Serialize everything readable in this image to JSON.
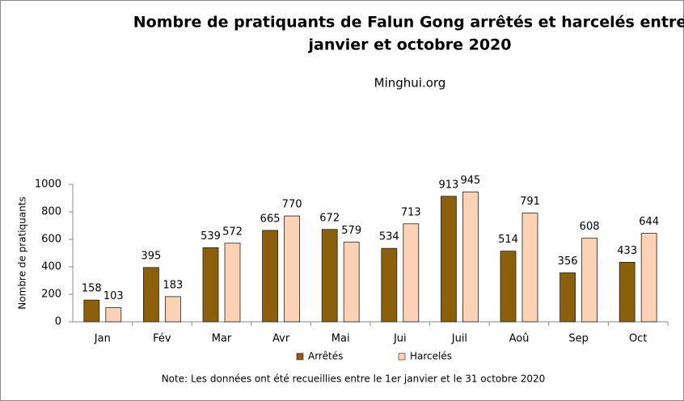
{
  "chart_data": {
    "type": "bar",
    "title": [
      "Nombre de pratiquants de Falun Gong arrêtés et harcelés entre",
      "janvier et octobre 2020"
    ],
    "subtitle": "Minghui.org",
    "y_label": "Nombre de pratiquants",
    "note": "Note: Les données ont été recueillies entre le 1er janvier et le 31 octobre 2020",
    "categories": [
      "Jan",
      "Fév",
      "Mar",
      "Avr",
      "Mai",
      "Jui",
      "Juil",
      "Aoû",
      "Sep",
      "Oct"
    ],
    "series": [
      {
        "name": "Arrêtés",
        "color": "#8c5f0b",
        "values": [
          158,
          395,
          539,
          665,
          672,
          534,
          913,
          514,
          356,
          433
        ]
      },
      {
        "name": "Harcelés",
        "color": "#fbd3b4",
        "values": [
          103,
          183,
          572,
          770,
          579,
          713,
          945,
          791,
          608,
          644
        ]
      }
    ],
    "ylim": [
      0,
      1000
    ],
    "yticks": [
      0,
      200,
      400,
      600,
      800,
      1000
    ],
    "grid": false
  }
}
